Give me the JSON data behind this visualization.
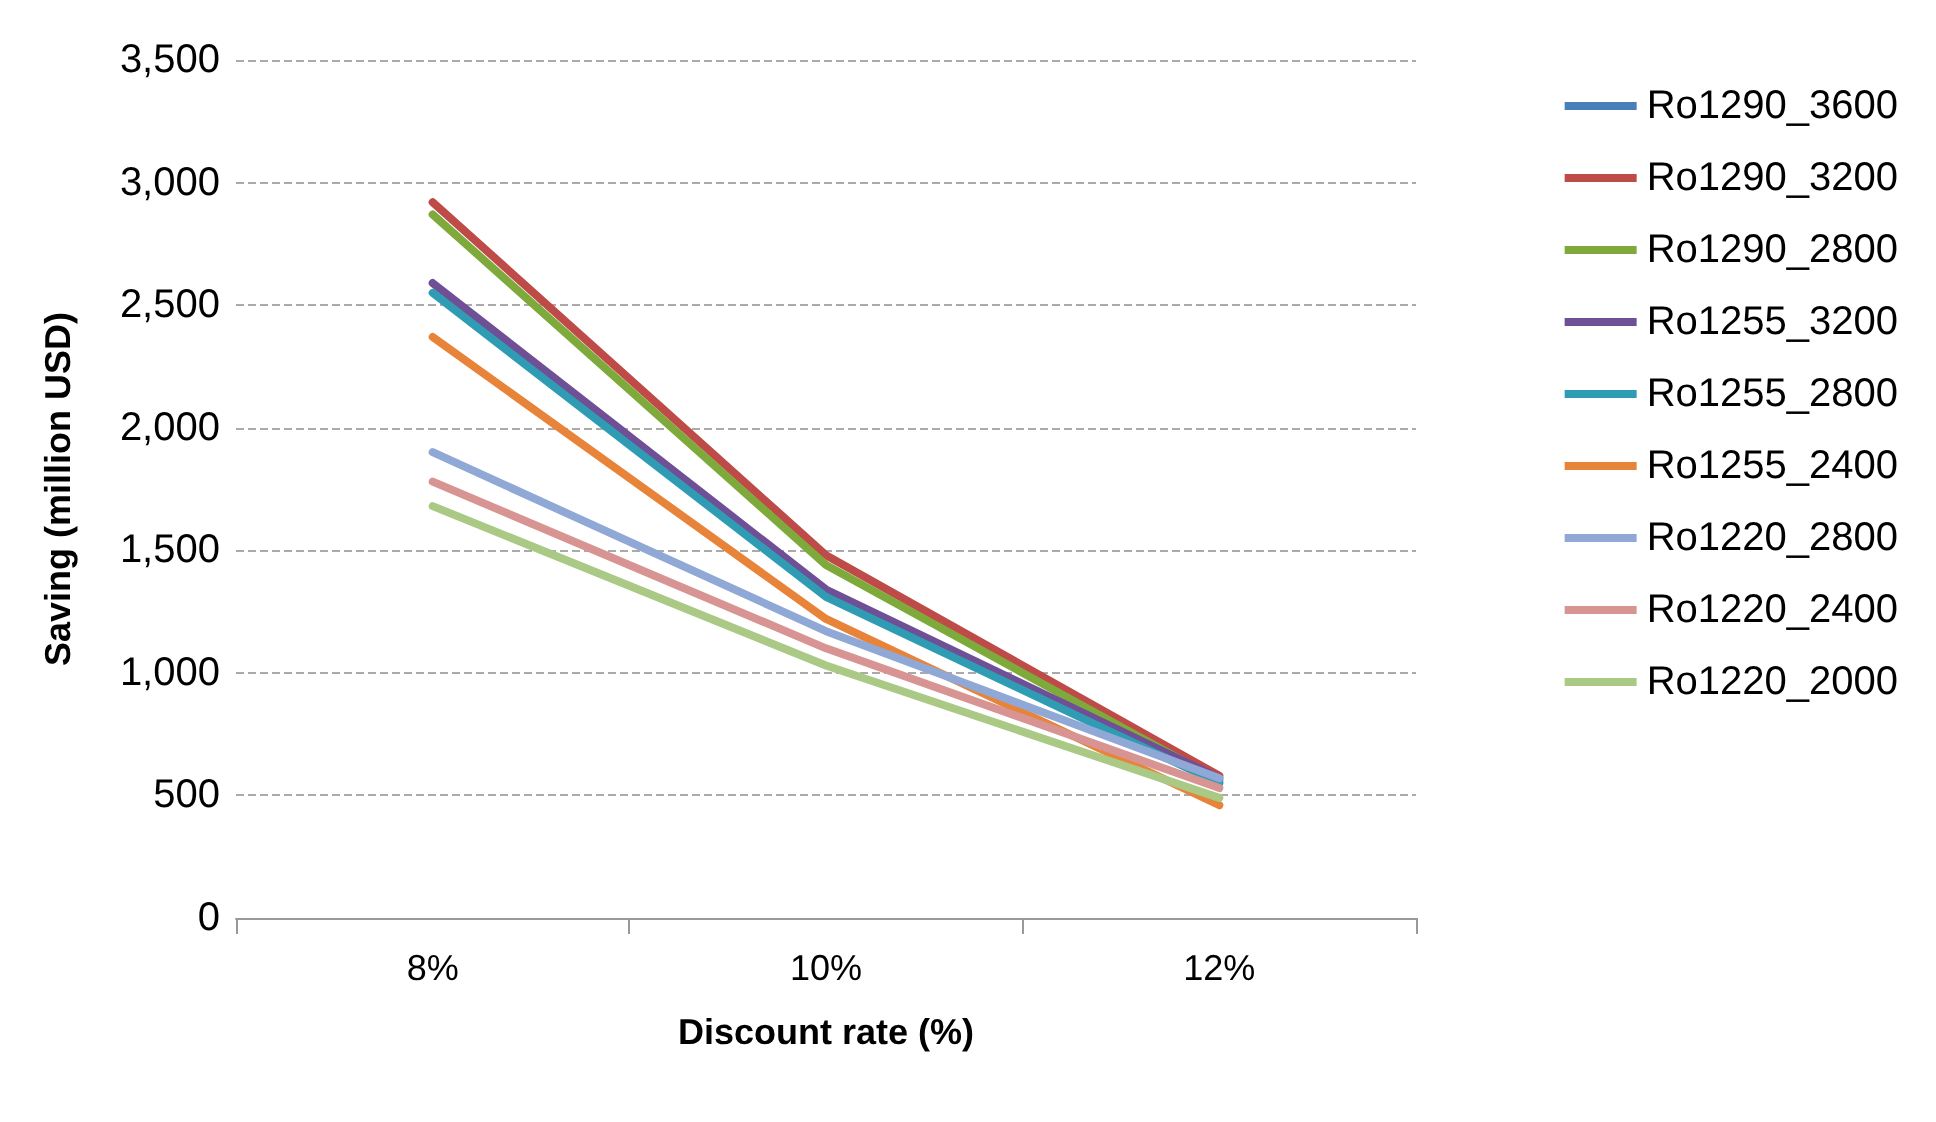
{
  "chart_data": {
    "type": "line",
    "xlabel": "Discount rate (%)",
    "ylabel": "Saving (million USD)",
    "categories": [
      "8%",
      "10%",
      "12%"
    ],
    "ylim": [
      0,
      3500
    ],
    "yticks": [
      {
        "value": 0,
        "label": "0"
      },
      {
        "value": 500,
        "label": "500"
      },
      {
        "value": 1000,
        "label": "1,000"
      },
      {
        "value": 1500,
        "label": "1,500"
      },
      {
        "value": 2000,
        "label": "2,000"
      },
      {
        "value": 2500,
        "label": "2,500"
      },
      {
        "value": 3000,
        "label": "3,000"
      },
      {
        "value": 3500,
        "label": "3,500"
      }
    ],
    "grid": "y",
    "legend": "right",
    "marker": "none",
    "line_style": "solid",
    "series": [
      {
        "name": "Ro1290_3600",
        "color": "#4a7ebb",
        "values": [
          null,
          null,
          null
        ]
      },
      {
        "name": "Ro1290_3200",
        "color": "#be4b48",
        "values": [
          2920,
          1480,
          580
        ]
      },
      {
        "name": "Ro1290_2800",
        "color": "#7eaa3c",
        "values": [
          2870,
          1440,
          560
        ]
      },
      {
        "name": "Ro1255_3200",
        "color": "#6f4f96",
        "values": [
          2590,
          1340,
          570
        ]
      },
      {
        "name": "Ro1255_2800",
        "color": "#2f9cb4",
        "values": [
          2550,
          1310,
          550
        ]
      },
      {
        "name": "Ro1255_2400",
        "color": "#e8843a",
        "values": [
          2370,
          1220,
          460
        ]
      },
      {
        "name": "Ro1220_2800",
        "color": "#90a8d6",
        "values": [
          1900,
          1170,
          570
        ]
      },
      {
        "name": "Ro1220_2400",
        "color": "#d89492",
        "values": [
          1780,
          1100,
          530
        ]
      },
      {
        "name": "Ro1220_2000",
        "color": "#a9c985",
        "values": [
          1680,
          1030,
          490
        ]
      }
    ]
  }
}
